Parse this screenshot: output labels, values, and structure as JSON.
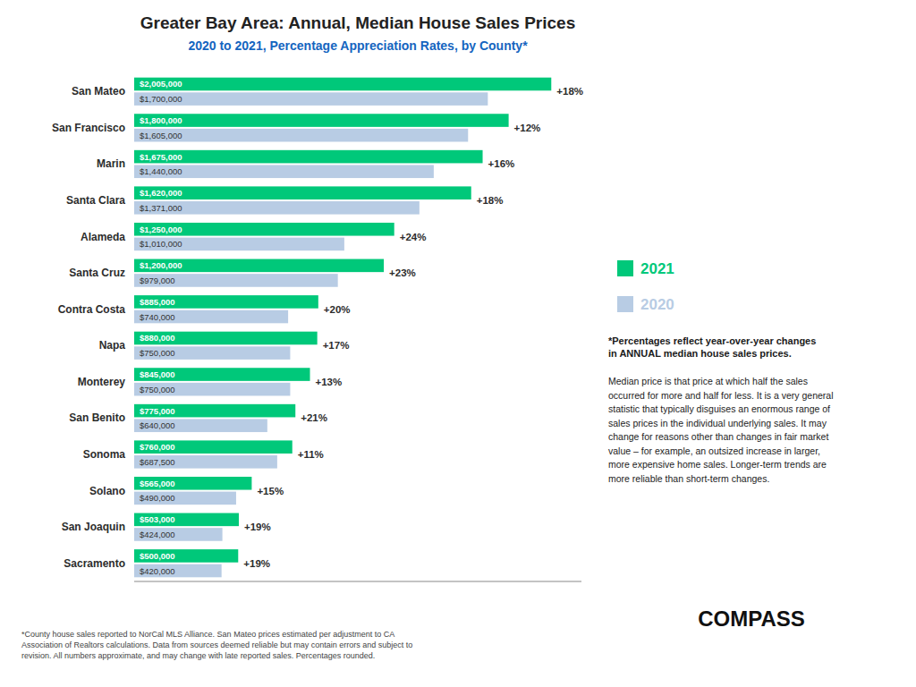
{
  "chart_data": {
    "type": "bar",
    "orientation": "horizontal",
    "title": "Greater Bay Area: Annual, Median House Sales Prices",
    "subtitle": "2020 to 2021, Percentage Appreciation Rates, by County*",
    "categories": [
      "San Mateo",
      "San Francisco",
      "Marin",
      "Santa Clara",
      "Alameda",
      "Santa Cruz",
      "Contra Costa",
      "Napa",
      "Monterey",
      "San Benito",
      "Sonoma",
      "Solano",
      "San Joaquin",
      "Sacramento"
    ],
    "series": [
      {
        "name": "2021",
        "color": "#00C87A",
        "values": [
          2005000,
          1800000,
          1675000,
          1620000,
          1250000,
          1200000,
          885000,
          880000,
          845000,
          775000,
          760000,
          565000,
          503000,
          500000
        ],
        "value_labels": [
          "$2,005,000",
          "$1,800,000",
          "$1,675,000",
          "$1,620,000",
          "$1,250,000",
          "$1,200,000",
          "$885,000",
          "$880,000",
          "$845,000",
          "$775,000",
          "$760,000",
          "$565,000",
          "$503,000",
          "$500,000"
        ]
      },
      {
        "name": "2020",
        "color": "#B8CCE4",
        "values": [
          1700000,
          1605000,
          1440000,
          1371000,
          1010000,
          979000,
          740000,
          750000,
          750000,
          640000,
          687500,
          490000,
          424000,
          420000
        ],
        "value_labels": [
          "$1,700,000",
          "$1,605,000",
          "$1,440,000",
          "$1,371,000",
          "$1,010,000",
          "$979,000",
          "$740,000",
          "$750,000",
          "$750,000",
          "$640,000",
          "$687,500",
          "$490,000",
          "$424,000",
          "$420,000"
        ]
      }
    ],
    "change_labels": [
      "+18%",
      "+12%",
      "+16%",
      "+18%",
      "+24%",
      "+23%",
      "+20%",
      "+17%",
      "+13%",
      "+21%",
      "+11%",
      "+15%",
      "+19%",
      "+19%"
    ],
    "xlim": [
      0,
      2150000
    ],
    "tick_labels": "y",
    "grid": false,
    "legend": "right",
    "data_labels": true,
    "annotations": [
      "*Percentages reflect year-over-year changes\nin ANNUAL median house sales prices.",
      "Median price is that price at which half the sales\noccurred for more and half for less. It is a very general\nstatistic that typically disguises an enormous range of\nsales prices in the individual underlying sales. It may\nchange for reasons other than changes in fair market\nvalue – for example, an outsized increase in larger,\nmore expensive home sales. Longer-term trends are\nmore reliable than short-term changes.",
      "COMPASS"
    ],
    "footnote": "*County house sales reported to NorCal MLS Alliance. San Mateo prices estimated per adjustment to CA\nAssociation of Realtors calculations. Data from sources deemed reliable but may contain errors and subject to\nrevision.  All numbers approximate, and may change with late reported sales. Percentages rounded."
  }
}
